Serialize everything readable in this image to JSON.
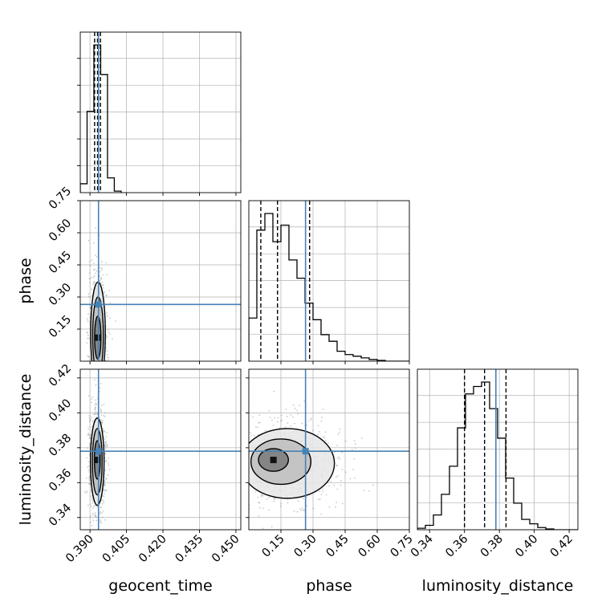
{
  "chart_data": {
    "type": "corner",
    "parameters": [
      "geocent_time",
      "phase",
      "luminosity_distance"
    ],
    "axis_labels": {
      "geocent_time": "geocent_time",
      "phase": "phase",
      "luminosity_distance": "luminosity_distance"
    },
    "ranges": {
      "geocent_time": [
        0.386,
        0.452
      ],
      "phase": [
        0.0,
        0.75
      ],
      "luminosity_distance": [
        0.333,
        0.425
      ]
    },
    "ticks": {
      "geocent_time": [
        "0.390",
        "0.405",
        "0.420",
        "0.435",
        "0.450"
      ],
      "phase": [
        "0.15",
        "0.30",
        "0.45",
        "0.60",
        "0.75"
      ],
      "phase_diag": [
        "0.15",
        "0.30",
        "0.45",
        "0.60",
        "0.75"
      ],
      "luminosity_distance": [
        "0.34",
        "0.36",
        "0.38",
        "0.40",
        "0.42"
      ]
    },
    "injection": {
      "geocent_time": 0.3935,
      "phase": 0.265,
      "luminosity_distance": 0.378
    },
    "quantiles": {
      "geocent_time": [
        0.3919,
        0.3931,
        0.3943
      ],
      "phase": [
        0.056,
        0.134,
        0.284
      ],
      "luminosity_distance": [
        0.36,
        0.3715,
        0.3838
      ]
    },
    "histograms": {
      "geocent_time": {
        "edges": [
          0.386,
          0.3888,
          0.3916,
          0.3944,
          0.3972,
          0.4,
          0.4028
        ],
        "counts": [
          0.06,
          0.55,
          1.0,
          0.8,
          0.1,
          0.01
        ]
      },
      "phase": {
        "edges": [
          0.0,
          0.0375,
          0.075,
          0.1125,
          0.15,
          0.1875,
          0.225,
          0.2625,
          0.3,
          0.3375,
          0.375,
          0.4125,
          0.45,
          0.4875,
          0.525,
          0.5625,
          0.6,
          0.6375,
          0.675,
          0.7125,
          0.75
        ],
        "counts": [
          0.26,
          0.79,
          0.89,
          0.72,
          0.82,
          0.61,
          0.5,
          0.35,
          0.25,
          0.16,
          0.12,
          0.06,
          0.04,
          0.03,
          0.02,
          0.01,
          0.005,
          0.0,
          0.0,
          0.0
        ]
      },
      "luminosity_distance": {
        "edges": [
          0.333,
          0.3376,
          0.3422,
          0.3468,
          0.3514,
          0.356,
          0.3606,
          0.3652,
          0.3698,
          0.3744,
          0.379,
          0.3836,
          0.3882,
          0.3928,
          0.3974,
          0.402,
          0.4066,
          0.4112,
          0.4158,
          0.4204,
          0.425
        ],
        "counts": [
          0.01,
          0.03,
          0.1,
          0.24,
          0.43,
          0.69,
          0.92,
          0.97,
          1.0,
          0.82,
          0.62,
          0.35,
          0.18,
          0.07,
          0.04,
          0.015,
          0.005,
          0.0,
          0.0,
          0.0
        ]
      }
    },
    "contours_2d": {
      "phase_vs_geocent_time": [
        {
          "cx": 0.3933,
          "cy": 0.13,
          "rx": 0.003,
          "ry": 0.24
        },
        {
          "cx": 0.3933,
          "cy": 0.12,
          "rx": 0.0022,
          "ry": 0.18
        },
        {
          "cx": 0.3932,
          "cy": 0.11,
          "rx": 0.0013,
          "ry": 0.1
        }
      ],
      "luminosity_distance_vs_geocent_time": [
        {
          "cx": 0.393,
          "cy": 0.372,
          "rx": 0.0028,
          "ry": 0.025
        },
        {
          "cx": 0.393,
          "cy": 0.372,
          "rx": 0.002,
          "ry": 0.019
        },
        {
          "cx": 0.393,
          "cy": 0.373,
          "rx": 0.0012,
          "ry": 0.011
        }
      ],
      "luminosity_distance_vs_phase": [
        {
          "cx": 0.18,
          "cy": 0.371,
          "rx": 0.22,
          "ry": 0.02
        },
        {
          "cx": 0.15,
          "cy": 0.372,
          "rx": 0.14,
          "ry": 0.013
        },
        {
          "cx": 0.115,
          "cy": 0.373,
          "rx": 0.07,
          "ry": 0.0065
        }
      ]
    },
    "colors": {
      "injection": "#4682b4",
      "hist": "#000000",
      "grid": "#b0b0b0",
      "points": "#888888"
    },
    "grid": true
  }
}
